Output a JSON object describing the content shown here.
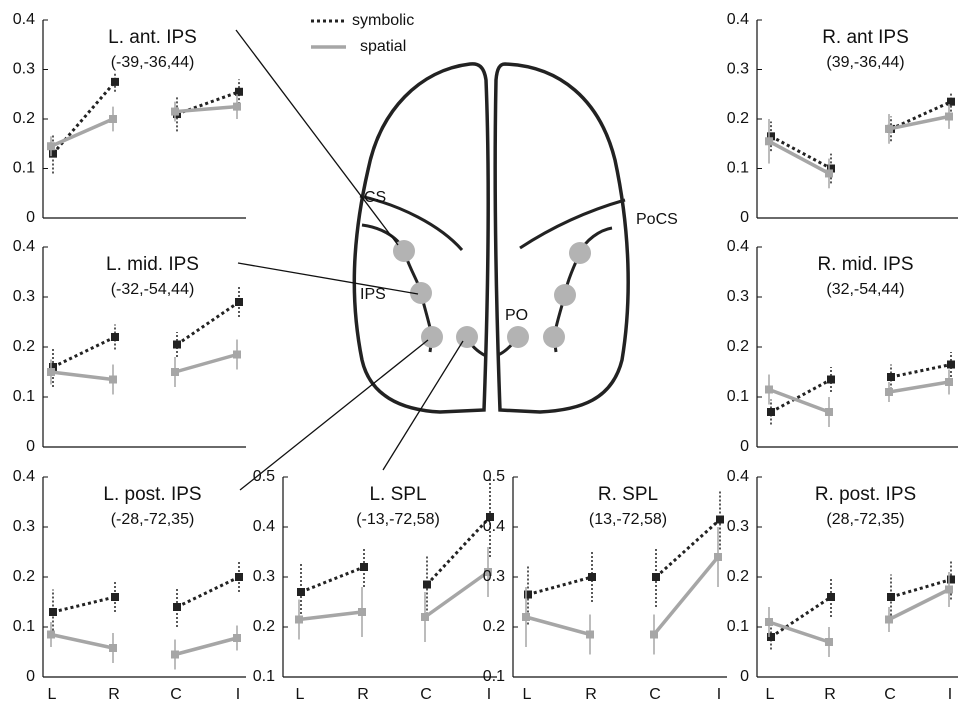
{
  "legend": [
    {
      "name": "symbolic",
      "color": "#222222",
      "dashed": true
    },
    {
      "name": "spatial",
      "color": "#a6a6a6",
      "dashed": false
    }
  ],
  "diagram": {
    "labels": [
      "CS",
      "IPS",
      "PO",
      "PoCS"
    ]
  },
  "chart_data": [
    {
      "type": "line",
      "title": "L. ant. IPS",
      "subtitle": "(-39,-36,44)",
      "ylim": [
        0,
        0.4
      ],
      "yticks": [
        0,
        0.1,
        0.2,
        0.3,
        0.4
      ],
      "series": [
        {
          "values": [
            0.13,
            0.275,
            0.21,
            0.255
          ],
          "errors": [
            0.04,
            0.02,
            0.035,
            0.025
          ]
        },
        {
          "values": [
            0.145,
            0.2,
            0.215,
            0.225
          ],
          "errors": [
            0.02,
            0.025,
            0.02,
            0.025
          ]
        }
      ]
    },
    {
      "type": "line",
      "title": "R. ant IPS",
      "subtitle": "(39,-36,44)",
      "ylim": [
        0,
        0.4
      ],
      "yticks": [
        0,
        0.1,
        0.2,
        0.3,
        0.4
      ],
      "series": [
        {
          "values": [
            0.165,
            0.1,
            0.18,
            0.235
          ],
          "errors": [
            0.03,
            0.03,
            0.025,
            0.02
          ]
        },
        {
          "values": [
            0.155,
            0.09,
            0.18,
            0.205
          ],
          "errors": [
            0.045,
            0.03,
            0.03,
            0.025
          ]
        }
      ]
    },
    {
      "type": "line",
      "title": "L. mid. IPS",
      "subtitle": "(-32,-54,44)",
      "ylim": [
        0,
        0.4
      ],
      "yticks": [
        0,
        0.1,
        0.2,
        0.3,
        0.4
      ],
      "series": [
        {
          "values": [
            0.16,
            0.22,
            0.205,
            0.29
          ],
          "errors": [
            0.04,
            0.025,
            0.025,
            0.03
          ]
        },
        {
          "values": [
            0.15,
            0.135,
            0.15,
            0.185
          ],
          "errors": [
            0.025,
            0.03,
            0.03,
            0.03
          ]
        }
      ]
    },
    {
      "type": "line",
      "title": "R. mid. IPS",
      "subtitle": "(32,-54,44)",
      "ylim": [
        0,
        0.4
      ],
      "yticks": [
        0,
        0.1,
        0.2,
        0.3,
        0.4
      ],
      "series": [
        {
          "values": [
            0.07,
            0.135,
            0.14,
            0.165
          ],
          "errors": [
            0.025,
            0.025,
            0.025,
            0.025
          ]
        },
        {
          "values": [
            0.115,
            0.07,
            0.11,
            0.13
          ],
          "errors": [
            0.03,
            0.03,
            0.02,
            0.025
          ]
        }
      ]
    },
    {
      "type": "line",
      "title": "L. post. IPS",
      "subtitle": "(-28,-72,35)",
      "ylim": [
        0,
        0.4
      ],
      "yticks": [
        0,
        0.1,
        0.2,
        0.3,
        0.4
      ],
      "categories": [
        "L",
        "R",
        "C",
        "I"
      ],
      "series": [
        {
          "values": [
            0.13,
            0.16,
            0.14,
            0.2
          ],
          "errors": [
            0.045,
            0.03,
            0.04,
            0.03
          ]
        },
        {
          "values": [
            0.085,
            0.058,
            0.045,
            0.078
          ],
          "errors": [
            0.025,
            0.03,
            0.03,
            0.025
          ]
        }
      ]
    },
    {
      "type": "line",
      "title": "L. SPL",
      "subtitle": "(-13,-72,58)",
      "ylim": [
        0.1,
        0.5
      ],
      "yticks": [
        0.1,
        0.2,
        0.3,
        0.4,
        0.5
      ],
      "categories": [
        "L",
        "R",
        "C",
        "I"
      ],
      "series": [
        {
          "values": [
            0.27,
            0.32,
            0.285,
            0.42
          ],
          "errors": [
            0.06,
            0.04,
            0.06,
            0.08
          ]
        },
        {
          "values": [
            0.215,
            0.23,
            0.22,
            0.31
          ],
          "errors": [
            0.04,
            0.05,
            0.05,
            0.05
          ]
        }
      ]
    },
    {
      "type": "line",
      "title": "R. SPL",
      "subtitle": "(13,-72,58)",
      "ylim": [
        0.1,
        0.5
      ],
      "yticks": [
        0.1,
        0.2,
        0.3,
        0.4,
        0.5
      ],
      "categories": [
        "L",
        "R",
        "C",
        "I"
      ],
      "series": [
        {
          "values": [
            0.265,
            0.3,
            0.3,
            0.415
          ],
          "errors": [
            0.06,
            0.05,
            0.06,
            0.06
          ]
        },
        {
          "values": [
            0.22,
            0.185,
            0.185,
            0.34
          ],
          "errors": [
            0.06,
            0.04,
            0.04,
            0.06
          ]
        }
      ]
    },
    {
      "type": "line",
      "title": "R. post. IPS",
      "subtitle": "(28,-72,35)",
      "ylim": [
        0,
        0.4
      ],
      "yticks": [
        0,
        0.1,
        0.2,
        0.3,
        0.4
      ],
      "categories": [
        "L",
        "R",
        "C",
        "I"
      ],
      "series": [
        {
          "values": [
            0.08,
            0.16,
            0.16,
            0.195
          ],
          "errors": [
            0.025,
            0.04,
            0.045,
            0.04
          ]
        },
        {
          "values": [
            0.11,
            0.07,
            0.115,
            0.175
          ],
          "errors": [
            0.03,
            0.03,
            0.025,
            0.035
          ]
        }
      ]
    }
  ]
}
